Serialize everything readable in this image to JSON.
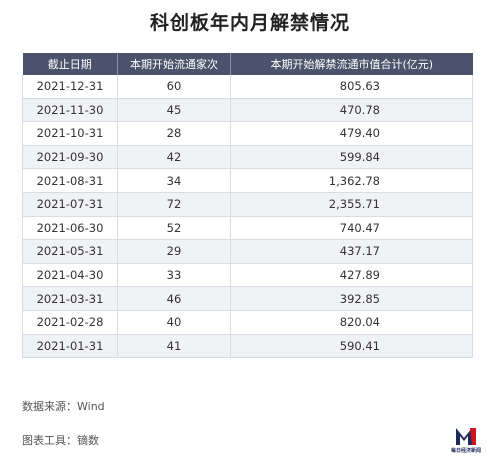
{
  "title": "科创板年内月解禁情况",
  "table": {
    "headers": [
      "截止日期",
      "本期开始流通家次",
      "本期开始解禁流通市值合计(亿元)"
    ],
    "rows": [
      [
        "2021-12-31",
        "60",
        "805.63"
      ],
      [
        "2021-11-30",
        "45",
        "470.78"
      ],
      [
        "2021-10-31",
        "28",
        "479.40"
      ],
      [
        "2021-09-30",
        "42",
        "599.84"
      ],
      [
        "2021-08-31",
        "34",
        "1,362.78"
      ],
      [
        "2021-07-31",
        "72",
        "2,355.71"
      ],
      [
        "2021-06-30",
        "52",
        "740.47"
      ],
      [
        "2021-05-31",
        "29",
        "437.17"
      ],
      [
        "2021-04-30",
        "33",
        "427.89"
      ],
      [
        "2021-03-31",
        "46",
        "392.85"
      ],
      [
        "2021-02-28",
        "40",
        "820.04"
      ],
      [
        "2021-01-31",
        "41",
        "590.41"
      ]
    ]
  },
  "chart_data": {
    "type": "table",
    "title": "科创板年内月解禁情况",
    "columns": [
      "截止日期",
      "本期开始流通家次",
      "本期开始解禁流通市值合计(亿元)"
    ],
    "rows": [
      [
        "2021-12-31",
        60,
        805.63
      ],
      [
        "2021-11-30",
        45,
        470.78
      ],
      [
        "2021-10-31",
        28,
        479.4
      ],
      [
        "2021-09-30",
        42,
        599.84
      ],
      [
        "2021-08-31",
        34,
        1362.78
      ],
      [
        "2021-07-31",
        72,
        2355.71
      ],
      [
        "2021-06-30",
        52,
        740.47
      ],
      [
        "2021-05-31",
        29,
        437.17
      ],
      [
        "2021-04-30",
        33,
        427.89
      ],
      [
        "2021-03-31",
        46,
        392.85
      ],
      [
        "2021-02-28",
        40,
        820.04
      ],
      [
        "2021-01-31",
        41,
        590.41
      ]
    ]
  },
  "footer": {
    "source": "数据来源：Wind",
    "tools": "图表工具：镝数"
  },
  "logo": {
    "text": "每日经济新闻",
    "color": "#1f2a5c",
    "accent": "#d0121b"
  }
}
